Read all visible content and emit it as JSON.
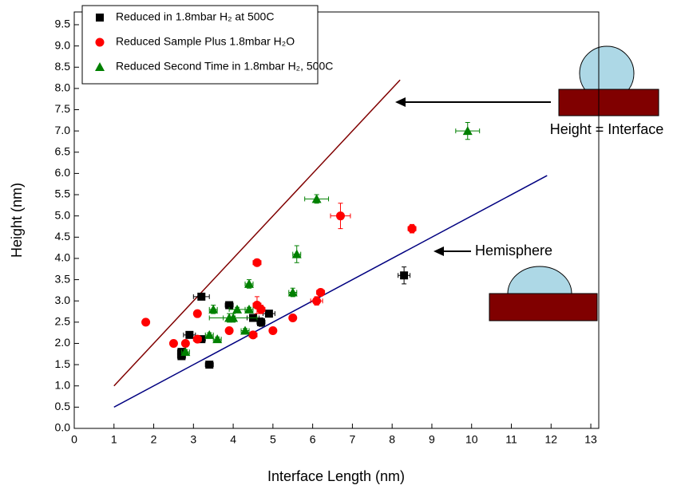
{
  "chart_data": {
    "type": "scatter",
    "x_label": "Interface Length (nm)",
    "y_label": "Height (nm)",
    "xlim": [
      0,
      13.2
    ],
    "ylim": [
      0,
      9.8
    ],
    "xticks": [
      0,
      1,
      2,
      3,
      4,
      5,
      6,
      7,
      8,
      9,
      10,
      11,
      12,
      13
    ],
    "yticks": [
      {
        "value": 0,
        "label": "0.0"
      },
      0.5,
      {
        "value": 1,
        "label": "1.0"
      },
      1.5,
      {
        "value": 2,
        "label": "2.0"
      },
      2.5,
      {
        "value": 3,
        "label": "3.0"
      },
      3.5,
      {
        "value": 4,
        "label": "4.0"
      },
      4.5,
      {
        "value": 5,
        "label": "5.0"
      },
      5.5,
      {
        "value": 6,
        "label": "6.0"
      },
      6.5,
      {
        "value": 7,
        "label": "7.0"
      },
      7.5,
      {
        "value": 8,
        "label": "8.0"
      },
      8.5,
      {
        "value": 9,
        "label": "9.0"
      },
      9.5
    ],
    "series": [
      {
        "name": "Reduced in 1.8mbar H₂ at 500C",
        "color": "#000000",
        "marker": "square",
        "x": [
          2.7,
          2.7,
          2.9,
          3.2,
          3.2,
          3.4,
          3.9,
          4.5,
          4.7,
          4.9,
          8.3
        ],
        "values": [
          1.7,
          1.8,
          2.2,
          3.1,
          2.1,
          1.5,
          2.9,
          2.6,
          2.5,
          2.7,
          3.6
        ],
        "xerr": [
          0.1,
          0.1,
          0.15,
          0.2,
          0.1,
          0.1,
          0.1,
          0.15,
          0.1,
          0.15,
          0.15
        ],
        "yerr": [
          0.05,
          0.05,
          0.05,
          0.05,
          0.05,
          0.05,
          0.05,
          0.05,
          0.1,
          0.05,
          0.2
        ]
      },
      {
        "name": "Reduced Sample Plus 1.8mbar H₂O",
        "color": "#ff0000",
        "marker": "circle",
        "x": [
          1.8,
          2.5,
          2.8,
          3.1,
          3.1,
          3.9,
          4.5,
          4.6,
          4.6,
          4.7,
          5.0,
          5.5,
          6.1,
          6.2,
          6.7,
          8.5
        ],
        "values": [
          2.5,
          2.0,
          2.0,
          2.1,
          2.7,
          2.3,
          2.2,
          3.9,
          2.9,
          2.8,
          2.3,
          2.6,
          3.0,
          3.2,
          5.0,
          4.7
        ],
        "xerr": [
          0.05,
          0.05,
          0.05,
          0.1,
          0.05,
          0.05,
          0.1,
          0.1,
          0.1,
          0.1,
          0.05,
          0.05,
          0.15,
          0.1,
          0.25,
          0.1
        ],
        "yerr": [
          0.05,
          0.05,
          0.05,
          0.05,
          0.05,
          0.05,
          0.05,
          0.05,
          0.2,
          0.1,
          0.05,
          0.05,
          0.1,
          0.05,
          0.3,
          0.1
        ]
      },
      {
        "name": "Reduced Second Time in 1.8mbar H₂, 500C",
        "color": "#008000",
        "marker": "triangle",
        "x": [
          2.8,
          3.4,
          3.5,
          3.6,
          3.9,
          4.0,
          4.1,
          4.3,
          4.4,
          4.4,
          5.5,
          5.6,
          6.1,
          9.9
        ],
        "values": [
          1.8,
          2.2,
          2.8,
          2.1,
          2.6,
          2.6,
          2.8,
          2.3,
          2.8,
          3.4,
          3.2,
          4.1,
          5.4,
          7.0
        ],
        "xerr": [
          0.1,
          0.1,
          0.1,
          0.1,
          0.15,
          0.6,
          0.2,
          0.1,
          0.1,
          0.1,
          0.1,
          0.1,
          0.3,
          0.3
        ],
        "yerr": [
          0.05,
          0.05,
          0.1,
          0.05,
          0.1,
          0.1,
          0.05,
          0.05,
          0.05,
          0.1,
          0.1,
          0.2,
          0.1,
          0.2
        ]
      }
    ],
    "lines": [
      {
        "name": "Height = Interface",
        "color": "#800000",
        "x": [
          1,
          8.2
        ],
        "values": [
          1,
          8.2
        ]
      },
      {
        "name": "Hemisphere",
        "color": "#000080",
        "x": [
          1,
          11.9
        ],
        "values": [
          0.5,
          5.95
        ]
      }
    ]
  }
}
